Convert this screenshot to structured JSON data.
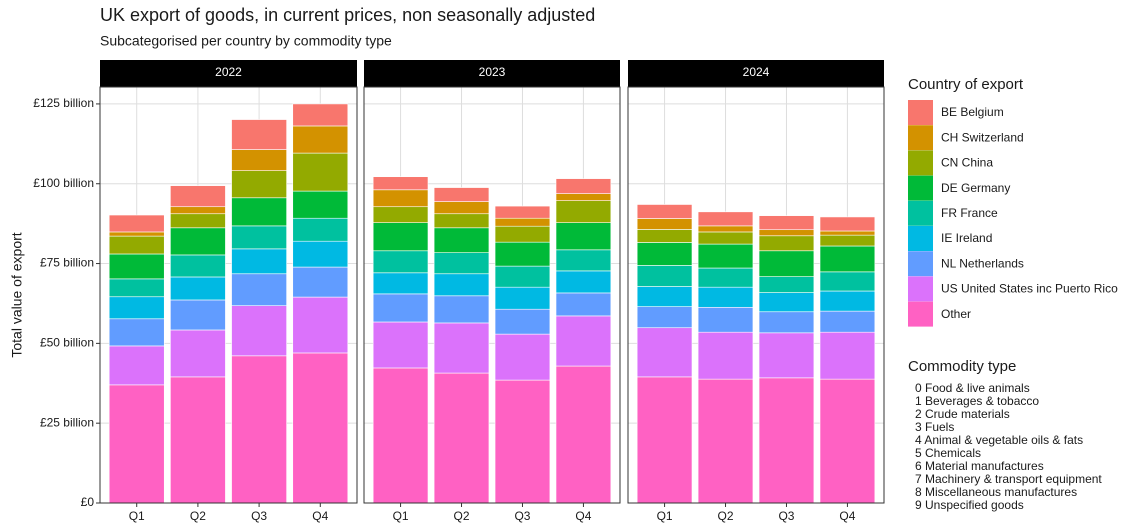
{
  "chart_data": {
    "type": "bar",
    "stacked": true,
    "title": "UK export of goods, in current prices, non seasonally adjusted",
    "subtitle": "Subcategorised per country by commodity type",
    "ylabel": "Total value of export",
    "facets": [
      "2022",
      "2023",
      "2024"
    ],
    "categories": [
      "Q1",
      "Q2",
      "Q3",
      "Q4"
    ],
    "ylim": [
      0,
      130.3
    ],
    "yticks": [
      {
        "value": 0,
        "label": "£0"
      },
      {
        "value": 25,
        "label": "£25 billion"
      },
      {
        "value": 50,
        "label": "£50 billion"
      },
      {
        "value": 75,
        "label": "£75 billion"
      },
      {
        "value": 100,
        "label": "£100 billion"
      },
      {
        "value": 125,
        "label": "£125 billion"
      }
    ],
    "grid": true,
    "legend_title": "Country of export",
    "legend_position": "right",
    "series": [
      {
        "name": "BE Belgium",
        "color": "#F8766D",
        "values": [
          [
            5.3,
            6.6,
            9.4,
            6.9
          ],
          [
            4.1,
            4.4,
            3.8,
            4.7
          ],
          [
            4.4,
            4.4,
            4.4,
            4.4
          ]
        ]
      },
      {
        "name": "CH Switzerland",
        "color": "#D39200",
        "values": [
          [
            1.3,
            2.2,
            6.6,
            8.5
          ],
          [
            5.3,
            3.8,
            2.5,
            2.2
          ],
          [
            3.4,
            1.9,
            1.9,
            1.3
          ]
        ]
      },
      {
        "name": "CN China",
        "color": "#93AA00",
        "values": [
          [
            5.6,
            4.4,
            8.5,
            11.9
          ],
          [
            5.0,
            4.4,
            5.0,
            6.9
          ],
          [
            4.1,
            3.8,
            4.7,
            3.4
          ]
        ]
      },
      {
        "name": "DE Germany",
        "color": "#00BA38",
        "values": [
          [
            7.8,
            8.5,
            8.8,
            8.5
          ],
          [
            8.8,
            7.8,
            7.5,
            8.5
          ],
          [
            7.2,
            7.5,
            8.1,
            8.1
          ]
        ]
      },
      {
        "name": "FR France",
        "color": "#00C19F",
        "values": [
          [
            5.6,
            6.9,
            7.2,
            7.2
          ],
          [
            6.9,
            6.6,
            6.6,
            6.6
          ],
          [
            6.6,
            6.0,
            5.0,
            6.0
          ]
        ]
      },
      {
        "name": "IE Ireland",
        "color": "#00B9E3",
        "values": [
          [
            6.9,
            7.2,
            7.8,
            8.1
          ],
          [
            6.6,
            6.9,
            6.9,
            6.9
          ],
          [
            6.3,
            6.3,
            6.0,
            6.3
          ]
        ]
      },
      {
        "name": "NL Netherlands",
        "color": "#619CFF",
        "values": [
          [
            8.5,
            9.4,
            10.0,
            9.4
          ],
          [
            8.8,
            8.5,
            7.8,
            7.2
          ],
          [
            6.6,
            7.8,
            6.6,
            6.6
          ]
        ]
      },
      {
        "name": "US United States inc Puerto Rico",
        "color": "#DB72FB",
        "values": [
          [
            12.2,
            14.7,
            15.7,
            17.5
          ],
          [
            14.4,
            15.7,
            14.4,
            15.7
          ],
          [
            15.4,
            14.7,
            14.1,
            14.7
          ]
        ]
      },
      {
        "name": "Other",
        "color": "#FF61C3",
        "values": [
          [
            37.0,
            39.5,
            46.1,
            47.0
          ],
          [
            42.3,
            40.7,
            38.5,
            42.9
          ],
          [
            39.5,
            38.8,
            39.2,
            38.8
          ]
        ]
      }
    ],
    "commodity_legend": {
      "title": "Commodity type",
      "items": [
        "0 Food & live animals",
        "1 Beverages & tobacco",
        "2 Crude materials",
        "3 Fuels",
        "4 Animal & vegetable oils & fats",
        "5 Chemicals",
        "6 Material manufactures",
        "7 Machinery & transport equipment",
        "8 Miscellaneous manufactures",
        "9 Unspecified goods"
      ]
    }
  }
}
